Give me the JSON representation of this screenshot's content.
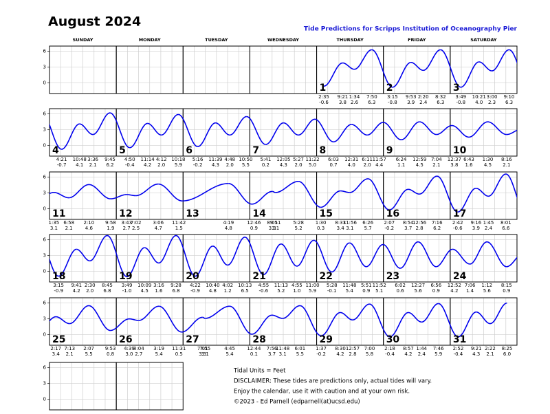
{
  "header": {
    "title": "August 2024",
    "subtitle": "Tide Predictions for Scripps Institution of Oceanography Pier"
  },
  "weekdays": [
    "SUNDAY",
    "MONDAY",
    "TUESDAY",
    "WEDNESDAY",
    "THURSDAY",
    "FRIDAY",
    "SATURDAY"
  ],
  "axis": {
    "ylim": [
      -2,
      7
    ],
    "yticks": [
      0,
      3,
      6
    ]
  },
  "days": [
    {
      "day": 1,
      "tides": [
        {
          "time": "2:35",
          "height": -0.6
        },
        {
          "time": "9:21",
          "height": 3.8
        },
        {
          "time": "1:34",
          "height": 2.6
        },
        {
          "time": "7:50",
          "height": 6.3
        }
      ]
    },
    {
      "day": 2,
      "tides": [
        {
          "time": "3:15",
          "height": -0.8
        },
        {
          "time": "9:53",
          "height": 3.9
        },
        {
          "time": "2:20",
          "height": 2.4
        },
        {
          "time": "8:32",
          "height": 6.3
        }
      ]
    },
    {
      "day": 3,
      "tides": [
        {
          "time": "3:49",
          "height": -0.8
        },
        {
          "time": "10:21",
          "height": 4,
          "height_label": "4.0"
        },
        {
          "time": "3:00",
          "height": 2.3
        },
        {
          "time": "9:10",
          "height": 6.3
        }
      ]
    },
    {
      "day": 4,
      "tides": [
        {
          "time": "4:21",
          "height": -0.7
        },
        {
          "time": "10:48",
          "height": 4.1
        },
        {
          "time": "3:36",
          "height": 2.1
        },
        {
          "time": "9:45",
          "height": 6.2
        }
      ]
    },
    {
      "day": 5,
      "tides": [
        {
          "time": "4:50",
          "height": -0.4
        },
        {
          "time": "11:14",
          "height": 4.2
        },
        {
          "time": "4:12",
          "height": 2,
          "height_label": "2.0"
        },
        {
          "time": "10:18",
          "height": 5.9
        }
      ]
    },
    {
      "day": 6,
      "tides": [
        {
          "time": "5:16",
          "height": -0.2
        },
        {
          "time": "11:39",
          "height": 4.3
        },
        {
          "time": "4:48",
          "height": 2,
          "height_label": "2.0"
        },
        {
          "time": "10:50",
          "height": 5.5
        }
      ]
    },
    {
      "day": 7,
      "tides": [
        {
          "time": "5:41",
          "height": 0.2
        },
        {
          "time": "12:05",
          "height": 4.3
        },
        {
          "time": "5:27",
          "height": 2,
          "height_label": "2.0"
        },
        {
          "time": "11:22",
          "height": 5,
          "height_label": "5.0"
        }
      ]
    },
    {
      "day": 8,
      "tides": [
        {
          "time": "6:03",
          "height": 0.7
        },
        {
          "time": "12:31",
          "height": 4,
          "height_label": "4.0"
        },
        {
          "time": "6:11",
          "height": 2,
          "height_label": "2.0"
        },
        {
          "time": "11:57",
          "height": 4.4
        }
      ]
    },
    {
      "day": 9,
      "tides": [
        {
          "time": "6:24",
          "height": 1.1
        },
        {
          "time": "12:59",
          "height": 4.5
        },
        {
          "time": "7:04",
          "height": 2.1
        }
      ]
    },
    {
      "day": 10,
      "tides": [
        {
          "time": "12:37",
          "height": 3.8
        },
        {
          "time": "6:43",
          "height": 1.6
        },
        {
          "time": "1:30",
          "height": 4.5
        },
        {
          "time": "8:16",
          "height": 2.1
        }
      ]
    },
    {
      "day": 11,
      "tides": [
        {
          "time": "1:35",
          "height": 3.1
        },
        {
          "time": "6:58",
          "height": 2.1
        },
        {
          "time": "2:10",
          "height": 4.6
        },
        {
          "time": "9:58",
          "height": 1.9
        }
      ]
    },
    {
      "day": 12,
      "tides": [
        {
          "time": "3:43",
          "height": 2.7
        },
        {
          "time": "7:02",
          "height": 2.5
        },
        {
          "time": "3:06",
          "height": 4.7
        },
        {
          "time": "11:42",
          "height": 1.5
        }
      ]
    },
    {
      "day": 13,
      "tides": [
        {
          "time": "4:19",
          "height": 4.8
        }
      ]
    },
    {
      "day": 14,
      "tides": [
        {
          "time": "12:46",
          "height": 0.9
        },
        {
          "time": "8:05",
          "height": 3.3
        },
        {
          "time": "9:11",
          "height": 3.1
        },
        {
          "time": "5:28",
          "height": 5.2
        }
      ]
    },
    {
      "day": 15,
      "tides": [
        {
          "time": "1:30",
          "height": 0.3
        },
        {
          "time": "8:33",
          "height": 3.4
        },
        {
          "time": "11:56",
          "height": 3.1
        },
        {
          "time": "6:26",
          "height": 5.7
        }
      ]
    },
    {
      "day": 16,
      "tides": [
        {
          "time": "2:07",
          "height": -0.2
        },
        {
          "time": "8:54",
          "height": 3.7
        },
        {
          "time": "12:56",
          "height": 2.8
        },
        {
          "time": "7:16",
          "height": 6.2
        }
      ]
    },
    {
      "day": 17,
      "tides": [
        {
          "time": "2:42",
          "height": -0.6
        },
        {
          "time": "9:16",
          "height": 3.9
        },
        {
          "time": "1:45",
          "height": 2.4
        },
        {
          "time": "8:01",
          "height": 6.6
        }
      ]
    },
    {
      "day": 18,
      "tides": [
        {
          "time": "3:15",
          "height": -0.9
        },
        {
          "time": "9:41",
          "height": 4.2
        },
        {
          "time": "2:30",
          "height": 2,
          "height_label": "2.0"
        },
        {
          "time": "8:45",
          "height": 6.8
        }
      ]
    },
    {
      "day": 19,
      "tides": [
        {
          "time": "3:49",
          "height": -1,
          "height_label": "-1.0"
        },
        {
          "time": "10:09",
          "height": 4.5
        },
        {
          "time": "3:16",
          "height": 1.6
        },
        {
          "time": "9:28",
          "height": 6.8
        }
      ]
    },
    {
      "day": 20,
      "tides": [
        {
          "time": "4:22",
          "height": -0.9
        },
        {
          "time": "10:40",
          "height": 4.8
        },
        {
          "time": "4:02",
          "height": 1.2
        },
        {
          "time": "10:13",
          "height": 6.5
        }
      ]
    },
    {
      "day": 21,
      "tides": [
        {
          "time": "4:55",
          "height": -0.6
        },
        {
          "time": "11:13",
          "height": 5.2
        },
        {
          "time": "4:55",
          "height": 1,
          "height_label": "1.0"
        },
        {
          "time": "11:00",
          "height": 5.9
        }
      ]
    },
    {
      "day": 22,
      "tides": [
        {
          "time": "5:28",
          "height": -0.1
        },
        {
          "time": "11:48",
          "height": 5.4
        },
        {
          "time": "5:51",
          "height": 0.9
        },
        {
          "time": "11:52",
          "height": 5.1
        }
      ]
    },
    {
      "day": 23,
      "tides": [
        {
          "time": "6:02",
          "height": 0.6
        },
        {
          "time": "12:27",
          "height": 5.6
        },
        {
          "time": "6:56",
          "height": 0.9
        }
      ]
    },
    {
      "day": 24,
      "tides": [
        {
          "time": "12:52",
          "height": 4.2
        },
        {
          "time": "7:06",
          "height": 1.4
        },
        {
          "time": "1:12",
          "height": 5.6
        },
        {
          "time": "8:15",
          "height": 0.9
        }
      ]
    },
    {
      "day": 25,
      "tides": [
        {
          "time": "2:17",
          "height": 3.4
        },
        {
          "time": "7:13",
          "height": 2.1
        },
        {
          "time": "2:07",
          "height": 5.5
        },
        {
          "time": "9:53",
          "height": 0.8
        }
      ]
    },
    {
      "day": 26,
      "tides": [
        {
          "time": "4:39",
          "height": 3,
          "height_label": "3.0"
        },
        {
          "time": "8:04",
          "height": 2.7
        },
        {
          "time": "3:19",
          "height": 5.4
        },
        {
          "time": "11:31",
          "height": 0.5
        }
      ]
    },
    {
      "day": 27,
      "tides": [
        {
          "time": "7:01",
          "height": 3.3
        },
        {
          "time": "7:55",
          "height": 3.1
        },
        {
          "time": "4:45",
          "height": 5.4
        }
      ]
    },
    {
      "day": 28,
      "tides": [
        {
          "time": "12:44",
          "height": 0.1
        },
        {
          "time": "7:56",
          "height": 3.7
        },
        {
          "time": "11:48",
          "height": 3.1
        },
        {
          "time": "6:01",
          "height": 5.5
        }
      ]
    },
    {
      "day": 29,
      "tides": [
        {
          "time": "1:37",
          "height": -0.2
        },
        {
          "time": "8:30",
          "height": 4.2
        },
        {
          "time": "12:57",
          "height": 2.8
        },
        {
          "time": "7:00",
          "height": 5.8
        }
      ]
    },
    {
      "day": 30,
      "tides": [
        {
          "time": "2:18",
          "height": -0.4
        },
        {
          "time": "8:57",
          "height": 4.2
        },
        {
          "time": "1:44",
          "height": 2.4
        },
        {
          "time": "7:46",
          "height": 5.9
        }
      ]
    },
    {
      "day": 31,
      "tides": [
        {
          "time": "2:52",
          "height": -0.4
        },
        {
          "time": "9:21",
          "height": 4.3
        },
        {
          "time": "2:22",
          "height": 2.1
        },
        {
          "time": "8:25",
          "height": 6,
          "height_label": "6.0"
        }
      ]
    }
  ],
  "notes": [
    "Tidal Units = Feet",
    "DISCLAIMER: These tides are predictions only, actual tides will vary.",
    "Enjoy the calendar, use it with caution and at your own risk.",
    "©2023 - Ed Parnell (edparnell(at)ucsd.edu)"
  ]
}
